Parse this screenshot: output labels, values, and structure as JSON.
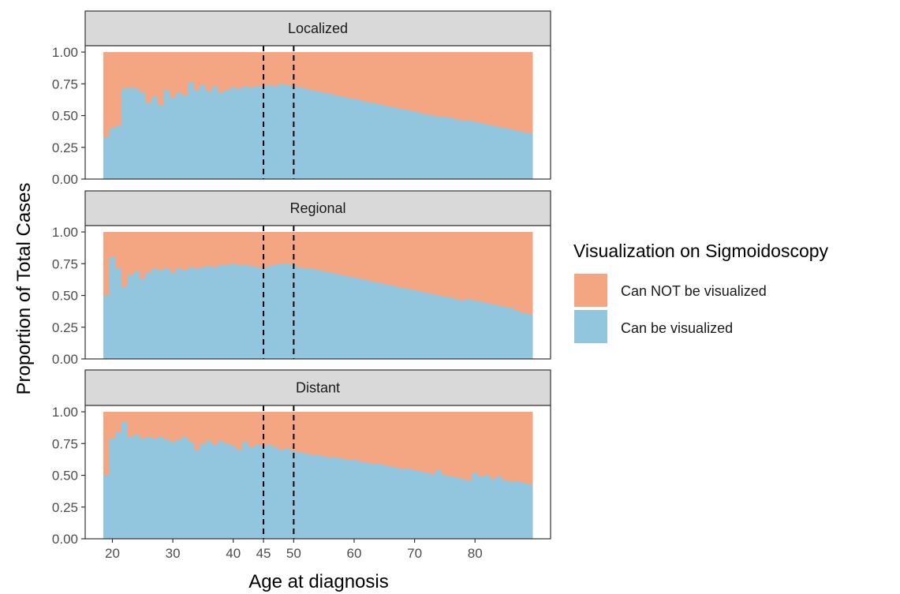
{
  "chart_data": {
    "type": "area",
    "subtype": "stacked-proportion-step",
    "xlabel": "Age at diagnosis",
    "ylabel": "Proportion of Total Cases",
    "x_ticks": [
      20,
      30,
      40,
      45,
      50,
      60,
      70,
      80
    ],
    "y_ticks": [
      "0.00",
      "0.25",
      "0.50",
      "0.75",
      "1.00"
    ],
    "xlim": [
      15.5,
      92.5
    ],
    "ylim": [
      0,
      1.05
    ],
    "vlines": [
      45,
      50
    ],
    "vline_style": "dashed",
    "legend": {
      "title": "Visualization on Sigmoidoscopy",
      "position": "right",
      "entries": [
        {
          "label": "Can NOT be visualized",
          "color": "#F4A582"
        },
        {
          "label": "Can be visualized",
          "color": "#92C5DE"
        }
      ]
    },
    "x": [
      19,
      20,
      21,
      22,
      23,
      24,
      25,
      26,
      27,
      28,
      29,
      30,
      31,
      32,
      33,
      34,
      35,
      36,
      37,
      38,
      39,
      40,
      41,
      42,
      43,
      44,
      45,
      46,
      47,
      48,
      49,
      50,
      51,
      52,
      53,
      54,
      55,
      56,
      57,
      58,
      59,
      60,
      61,
      62,
      63,
      64,
      65,
      66,
      67,
      68,
      69,
      70,
      71,
      72,
      73,
      74,
      75,
      76,
      77,
      78,
      79,
      80,
      81,
      82,
      83,
      84,
      85,
      86,
      87,
      88,
      89
    ],
    "panels": [
      {
        "strip": "Localized",
        "can_be_visualized": [
          0.33,
          0.4,
          0.42,
          0.71,
          0.72,
          0.71,
          0.68,
          0.6,
          0.65,
          0.58,
          0.7,
          0.64,
          0.68,
          0.66,
          0.76,
          0.7,
          0.74,
          0.69,
          0.73,
          0.68,
          0.7,
          0.72,
          0.71,
          0.73,
          0.72,
          0.73,
          0.73,
          0.74,
          0.73,
          0.75,
          0.74,
          0.73,
          0.72,
          0.71,
          0.7,
          0.69,
          0.68,
          0.67,
          0.66,
          0.65,
          0.64,
          0.63,
          0.62,
          0.61,
          0.6,
          0.59,
          0.58,
          0.57,
          0.56,
          0.55,
          0.54,
          0.53,
          0.52,
          0.51,
          0.5,
          0.49,
          0.49,
          0.48,
          0.47,
          0.46,
          0.46,
          0.45,
          0.44,
          0.43,
          0.42,
          0.41,
          0.4,
          0.39,
          0.38,
          0.37,
          0.36
        ]
      },
      {
        "strip": "Regional",
        "can_be_visualized": [
          0.5,
          0.8,
          0.71,
          0.57,
          0.66,
          0.69,
          0.63,
          0.68,
          0.71,
          0.7,
          0.71,
          0.68,
          0.71,
          0.7,
          0.72,
          0.71,
          0.72,
          0.73,
          0.72,
          0.74,
          0.74,
          0.75,
          0.74,
          0.74,
          0.73,
          0.72,
          0.71,
          0.73,
          0.74,
          0.75,
          0.75,
          0.74,
          0.72,
          0.71,
          0.71,
          0.7,
          0.69,
          0.68,
          0.67,
          0.66,
          0.65,
          0.64,
          0.63,
          0.62,
          0.61,
          0.6,
          0.59,
          0.58,
          0.57,
          0.56,
          0.55,
          0.54,
          0.53,
          0.52,
          0.51,
          0.5,
          0.49,
          0.48,
          0.47,
          0.46,
          0.47,
          0.46,
          0.45,
          0.44,
          0.43,
          0.42,
          0.41,
          0.4,
          0.38,
          0.36,
          0.35
        ]
      },
      {
        "strip": "Distant",
        "can_be_visualized": [
          0.5,
          0.79,
          0.84,
          0.92,
          0.8,
          0.82,
          0.79,
          0.8,
          0.79,
          0.8,
          0.78,
          0.76,
          0.78,
          0.8,
          0.76,
          0.7,
          0.75,
          0.77,
          0.74,
          0.77,
          0.75,
          0.73,
          0.7,
          0.76,
          0.72,
          0.74,
          0.73,
          0.74,
          0.72,
          0.7,
          0.71,
          0.69,
          0.68,
          0.67,
          0.66,
          0.66,
          0.65,
          0.64,
          0.64,
          0.63,
          0.62,
          0.62,
          0.61,
          0.6,
          0.59,
          0.59,
          0.58,
          0.57,
          0.56,
          0.55,
          0.55,
          0.54,
          0.53,
          0.52,
          0.51,
          0.54,
          0.5,
          0.49,
          0.48,
          0.47,
          0.46,
          0.52,
          0.49,
          0.5,
          0.47,
          0.49,
          0.46,
          0.45,
          0.45,
          0.44,
          0.43
        ]
      }
    ]
  }
}
